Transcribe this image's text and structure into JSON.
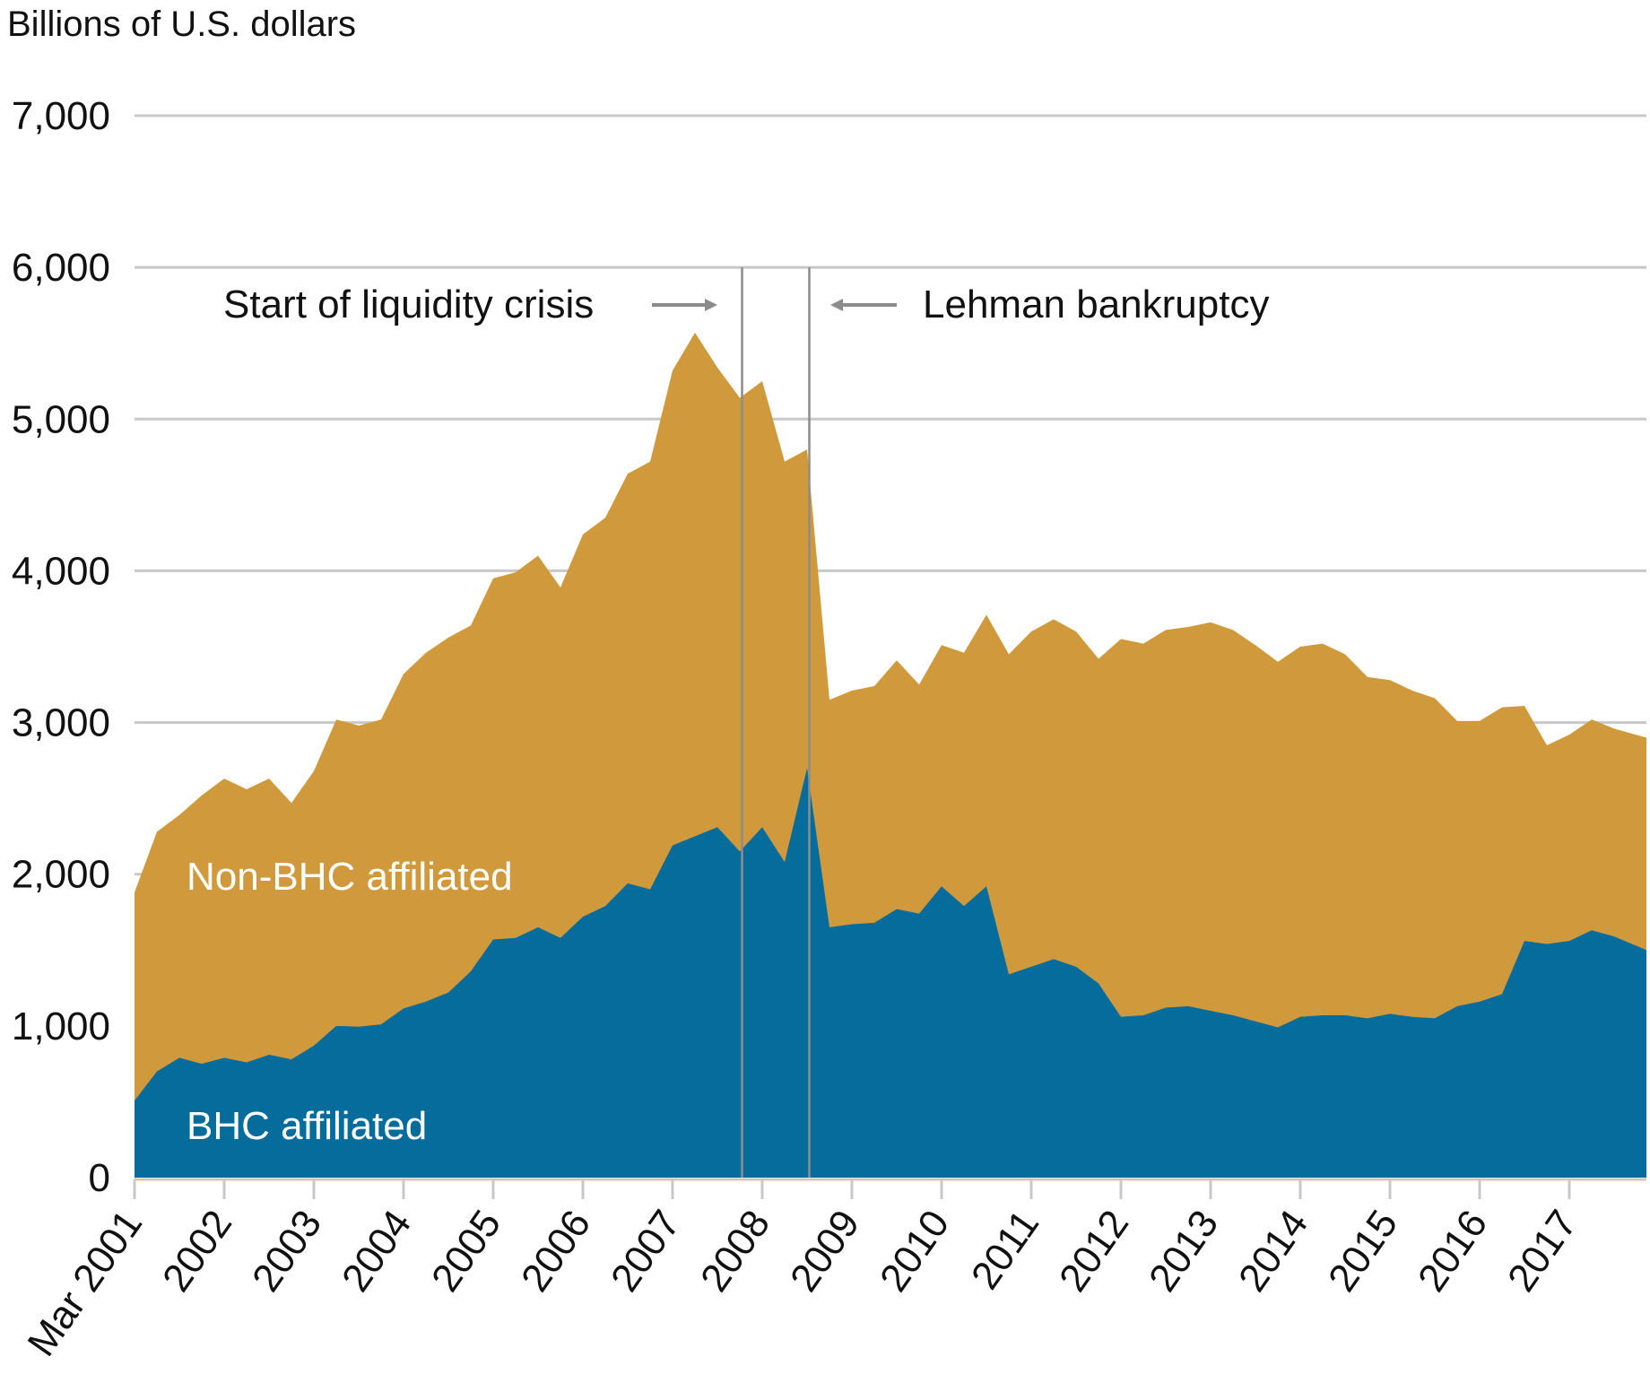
{
  "chart_data": {
    "type": "area",
    "stacked": true,
    "title": "",
    "ylabel": "Billions of U.S. dollars",
    "xlabel": "",
    "ylim": [
      0,
      7000
    ],
    "yticks": [
      0,
      1000,
      2000,
      3000,
      4000,
      5000,
      6000,
      7000
    ],
    "ytick_labels": [
      "0",
      "1,000",
      "2,000",
      "3,000",
      "4,000",
      "5,000",
      "6,000",
      "7,000"
    ],
    "xtick_labels": [
      "Mar 2001",
      "2002",
      "2003",
      "2004",
      "2005",
      "2006",
      "2007",
      "2008",
      "2009",
      "2010",
      "2011",
      "2012",
      "2013",
      "2014",
      "2015",
      "2016",
      "2017"
    ],
    "grid": "horizontal",
    "x_start": "Mar 2001",
    "x_frequency": "quarterly",
    "colors": {
      "bhc": "#056c9c",
      "non_bhc": "#d09a3c",
      "grid": "#c8c8c8",
      "event_line": "#8c8c8c"
    },
    "series": [
      {
        "name": "BHC affiliated",
        "values": [
          507,
          700,
          790,
          750,
          790,
          760,
          810,
          780,
          870,
          1000,
          995,
          1010,
          1115,
          1160,
          1220,
          1360,
          1570,
          1580,
          1650,
          1580,
          1720,
          1790,
          1940,
          1900,
          2190,
          2250,
          2310,
          2150,
          2310,
          2080,
          2700,
          1650,
          1670,
          1680,
          1770,
          1740,
          1920,
          1790,
          1920,
          1340,
          1390,
          1440,
          1390,
          1280,
          1060,
          1070,
          1120,
          1130,
          1100,
          1070,
          1030,
          990,
          1060,
          1070,
          1070,
          1050,
          1080,
          1060,
          1050,
          1130,
          1160,
          1210,
          1560,
          1540,
          1560,
          1630,
          1590,
          1500
        ]
      },
      {
        "name": "Non-BHC affiliated",
        "values": [
          1373,
          1580,
          1600,
          1770,
          1840,
          1800,
          1820,
          1690,
          1810,
          2020,
          1985,
          2010,
          2205,
          2300,
          2340,
          2280,
          2380,
          2410,
          2450,
          2310,
          2520,
          2560,
          2700,
          2820,
          3130,
          3320,
          3030,
          2990,
          2940,
          2640,
          2100,
          1500,
          1540,
          1560,
          1640,
          1510,
          1590,
          1670,
          1790,
          2110,
          2210,
          2240,
          2210,
          2140,
          2490,
          2450,
          2490,
          2500,
          2560,
          2540,
          2480,
          2410,
          2440,
          2450,
          2380,
          2250,
          2200,
          2150,
          2110,
          1880,
          1850,
          1890,
          1550,
          1310,
          1360,
          1390,
          1370,
          1400
        ]
      }
    ],
    "annotations": [
      {
        "text": "Start of liquidity crisis",
        "x_quarter_index": 27.1,
        "arrow": "right"
      },
      {
        "text": "Lehman bankruptcy",
        "x_quarter_index": 30.1,
        "arrow": "left"
      }
    ]
  }
}
